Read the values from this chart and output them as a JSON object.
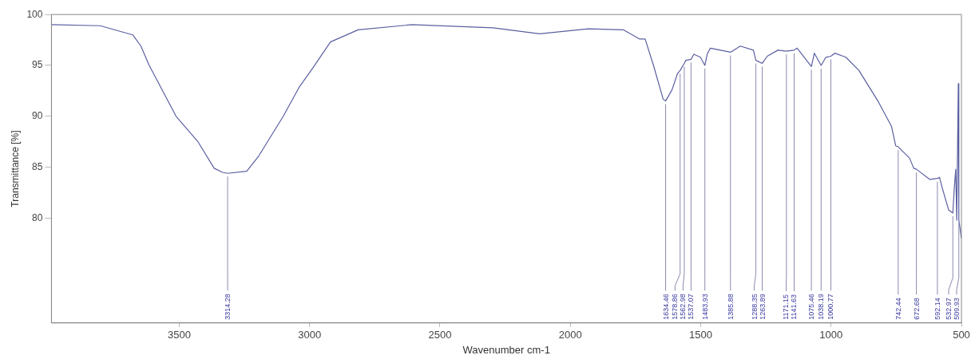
{
  "chart_data": {
    "type": "line",
    "xlabel": "Wavenumber cm-1",
    "ylabel": "Transmittance [%]",
    "xlim": [
      3990,
      500
    ],
    "xticks": [
      3500,
      3000,
      2500,
      2000,
      1500,
      1000,
      500
    ],
    "ylim": [
      69.7,
      100
    ],
    "yticks": [
      80,
      85,
      90,
      95,
      100
    ],
    "marker": "none",
    "line_style": "solid",
    "series": [
      {
        "color": "#5a5fa0",
        "x": [
          3990,
          3803,
          3678,
          3647,
          3615,
          3512,
          3428,
          3366,
          3334,
          3314.28,
          3241,
          3195,
          3101,
          3039,
          2989,
          2920,
          2814,
          2608,
          2296,
          2118,
          1931,
          1797,
          1735,
          1713,
          1681,
          1644,
          1634.46,
          1610,
          1589,
          1578.86,
          1562.98,
          1557,
          1537.07,
          1526,
          1501,
          1483.93,
          1475,
          1463,
          1385.88,
          1348,
          1298,
          1288.35,
          1263.89,
          1245,
          1204,
          1171.15,
          1141.63,
          1130,
          1075.46,
          1064,
          1038.19,
          1020,
          1000.77,
          986,
          943,
          893,
          818,
          768,
          752,
          742.44,
          699,
          683,
          672.68,
          621,
          592.14,
          584,
          574,
          549,
          532.97,
          528,
          522,
          518,
          512,
          509.93,
          500
        ],
        "values": [
          99.0,
          98.9,
          98.0,
          96.9,
          95.0,
          90.0,
          87.5,
          84.9,
          84.5,
          84.4,
          84.6,
          86.1,
          90.0,
          92.9,
          94.7,
          97.3,
          98.5,
          99.0,
          98.7,
          98.1,
          98.6,
          98.5,
          97.6,
          97.6,
          95.0,
          91.7,
          91.5,
          92.6,
          94.2,
          94.5,
          95.2,
          95.5,
          95.6,
          96.1,
          95.8,
          95.0,
          96.1,
          96.7,
          96.3,
          96.9,
          96.5,
          95.5,
          95.2,
          95.9,
          96.5,
          96.4,
          96.5,
          96.7,
          94.9,
          96.2,
          95.0,
          95.8,
          95.9,
          96.2,
          95.8,
          94.5,
          91.4,
          89.0,
          87.1,
          87.0,
          85.9,
          84.9,
          84.8,
          83.8,
          83.9,
          84.0,
          83.0,
          80.8,
          80.5,
          82.7,
          84.8,
          79.8,
          93.2,
          79.8,
          78.0
        ]
      }
    ],
    "annotations": [
      {
        "text": "3314.28",
        "x": 3314.28,
        "y": 84.4
      },
      {
        "text": "1634.46",
        "x": 1634.46,
        "y": 91.5
      },
      {
        "text": "1578.86",
        "x": 1578.86,
        "y": 94.5
      },
      {
        "text": "1562.98",
        "x": 1562.98,
        "y": 95.2
      },
      {
        "text": "1537.07",
        "x": 1537.07,
        "y": 95.6
      },
      {
        "text": "1483.93",
        "x": 1483.93,
        "y": 95.0
      },
      {
        "text": "1385.88",
        "x": 1385.88,
        "y": 96.3
      },
      {
        "text": "1288.35",
        "x": 1288.35,
        "y": 95.5
      },
      {
        "text": "1263.89",
        "x": 1263.89,
        "y": 95.2
      },
      {
        "text": "1171.15",
        "x": 1171.15,
        "y": 96.4
      },
      {
        "text": "1141.63",
        "x": 1141.63,
        "y": 96.5
      },
      {
        "text": "1075.46",
        "x": 1075.46,
        "y": 94.9
      },
      {
        "text": "1038.19",
        "x": 1038.19,
        "y": 95.0
      },
      {
        "text": "1000.77",
        "x": 1000.77,
        "y": 95.9
      },
      {
        "text": "742.44",
        "x": 742.44,
        "y": 87.0
      },
      {
        "text": "672.68",
        "x": 672.68,
        "y": 84.8
      },
      {
        "text": "592.14",
        "x": 592.14,
        "y": 83.9
      },
      {
        "text": "532.97",
        "x": 532.97,
        "y": 80.5
      },
      {
        "text": "509.93",
        "x": 509.93,
        "y": 79.8
      }
    ]
  }
}
